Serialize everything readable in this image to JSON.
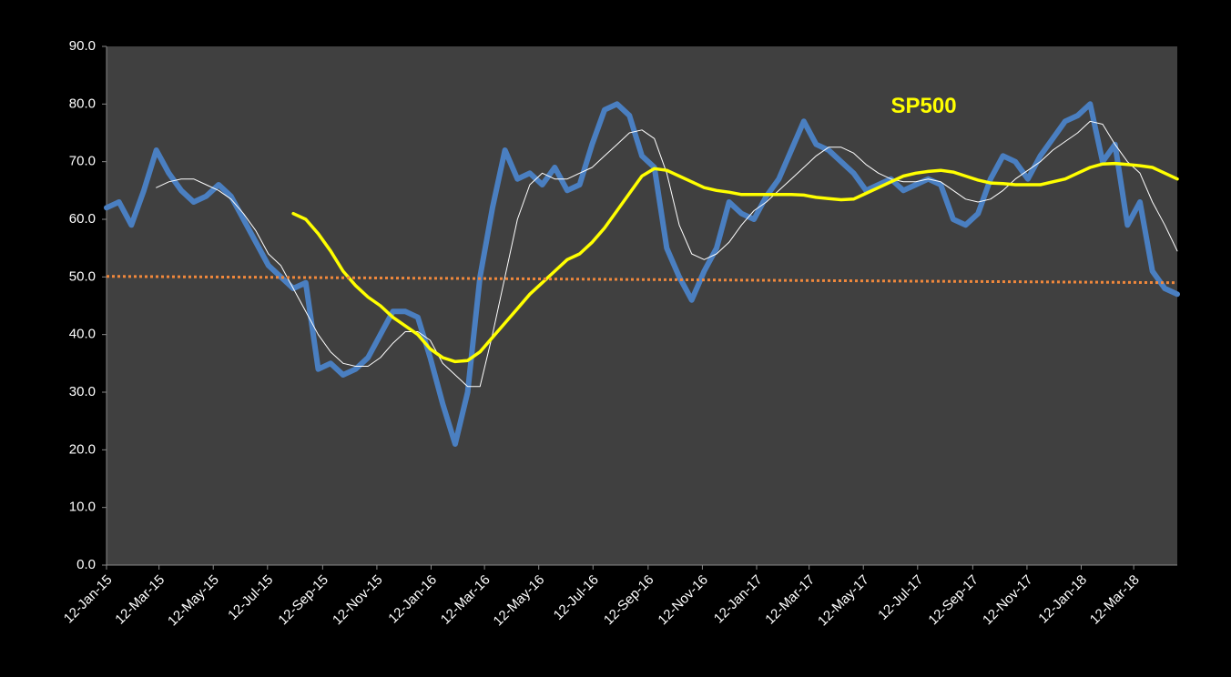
{
  "chart_data": {
    "type": "line",
    "annotations": [
      {
        "text": "SP500",
        "x": "2017-06-12",
        "y": 79.5,
        "color": "#ffff00"
      }
    ],
    "x": [
      "2015-01-12",
      "2015-01-26",
      "2015-02-09",
      "2015-02-23",
      "2015-03-09",
      "2015-03-23",
      "2015-04-06",
      "2015-04-20",
      "2015-05-04",
      "2015-05-18",
      "2015-06-01",
      "2015-06-15",
      "2015-06-29",
      "2015-07-13",
      "2015-07-27",
      "2015-08-10",
      "2015-08-24",
      "2015-09-07",
      "2015-09-21",
      "2015-10-05",
      "2015-10-19",
      "2015-11-02",
      "2015-11-16",
      "2015-11-30",
      "2015-12-14",
      "2015-12-28",
      "2016-01-11",
      "2016-01-25",
      "2016-02-08",
      "2016-02-22",
      "2016-03-07",
      "2016-03-21",
      "2016-04-04",
      "2016-04-18",
      "2016-05-02",
      "2016-05-16",
      "2016-05-30",
      "2016-06-13",
      "2016-06-27",
      "2016-07-11",
      "2016-07-25",
      "2016-08-08",
      "2016-08-22",
      "2016-09-05",
      "2016-09-19",
      "2016-10-03",
      "2016-10-17",
      "2016-10-31",
      "2016-11-14",
      "2016-11-28",
      "2016-12-12",
      "2016-12-26",
      "2017-01-09",
      "2017-01-23",
      "2017-02-06",
      "2017-02-20",
      "2017-03-06",
      "2017-03-20",
      "2017-04-03",
      "2017-04-17",
      "2017-05-01",
      "2017-05-15",
      "2017-05-29",
      "2017-06-12",
      "2017-06-26",
      "2017-07-10",
      "2017-07-24",
      "2017-08-07",
      "2017-08-21",
      "2017-09-04",
      "2017-09-18",
      "2017-10-02",
      "2017-10-16",
      "2017-10-30",
      "2017-11-13",
      "2017-11-27",
      "2017-12-11",
      "2017-12-25",
      "2018-01-08",
      "2018-01-22",
      "2018-02-05",
      "2018-02-19",
      "2018-03-05",
      "2018-03-19",
      "2018-04-02",
      "2018-04-16",
      "2018-04-30"
    ],
    "series": [
      {
        "color": "#4a7fc1",
        "width": 6,
        "values": [
          62,
          63,
          59,
          65,
          72,
          68,
          65,
          63,
          64,
          66,
          64,
          60,
          56,
          52,
          50,
          48,
          49,
          34,
          35,
          33,
          34,
          36,
          40,
          44,
          44,
          43,
          36,
          28,
          21,
          30,
          50,
          62,
          72,
          67,
          68,
          66,
          69,
          65,
          66,
          73,
          79,
          80,
          78,
          71,
          69,
          55,
          50,
          46,
          51,
          55,
          63,
          61,
          60,
          64,
          67,
          72,
          77,
          73,
          72,
          70,
          68,
          65,
          66,
          67,
          65,
          66,
          67,
          66,
          60,
          59,
          61,
          67,
          71,
          70,
          67,
          71,
          74,
          77,
          78,
          80,
          70,
          73,
          59,
          63,
          51,
          48,
          47
        ]
      },
      {
        "color": "#ffffff",
        "width": 1,
        "values": [
          null,
          null,
          null,
          null,
          65.5,
          66.5,
          67,
          67,
          66,
          65,
          63.5,
          61,
          58,
          54,
          52,
          48,
          44,
          40,
          37,
          35,
          34.5,
          34.5,
          36,
          38.5,
          40.5,
          40.5,
          39,
          35,
          33,
          31,
          31,
          40,
          50,
          60,
          66,
          68,
          67,
          67,
          68,
          69,
          71,
          73,
          75,
          75.5,
          74,
          68,
          59,
          54,
          53,
          54,
          56,
          59,
          61.5,
          63,
          65,
          67,
          69,
          71,
          72.5,
          72.5,
          71.5,
          69.5,
          68,
          67,
          66.5,
          66.5,
          67,
          66.5,
          65,
          63.5,
          63,
          63.5,
          65,
          67,
          68.5,
          70,
          72,
          73.5,
          75,
          77,
          76.5,
          73,
          70,
          68,
          63,
          59,
          54.5
        ]
      },
      {
        "color": "#ffff00",
        "width": 3.5,
        "values": [
          null,
          null,
          null,
          null,
          null,
          null,
          null,
          null,
          null,
          null,
          null,
          null,
          null,
          null,
          null,
          61,
          60,
          57.5,
          54.5,
          51,
          48.5,
          46.5,
          45,
          43,
          41.5,
          40,
          37.5,
          36,
          35.3,
          35.5,
          37,
          39.5,
          42,
          44.5,
          47,
          49,
          51,
          53,
          54,
          56,
          58.5,
          61.5,
          64.5,
          67.5,
          68.8,
          68.5,
          67.5,
          66.5,
          65.5,
          65,
          64.7,
          64.3,
          64.3,
          64.3,
          64.3,
          64.3,
          64.2,
          63.8,
          63.6,
          63.4,
          63.5,
          64.5,
          65.5,
          66.5,
          67.5,
          68,
          68.3,
          68.5,
          68.2,
          67.5,
          66.8,
          66.3,
          66.2,
          66,
          66,
          66,
          66.5,
          67,
          68,
          69,
          69.6,
          69.7,
          69.5,
          69.3,
          69,
          68,
          67
        ]
      },
      {
        "color": "#f0883c",
        "width": 3,
        "dotted": true,
        "x": [
          "2015-01-12",
          "2018-04-30"
        ],
        "values": [
          50.1,
          49
        ]
      }
    ],
    "xlim": [
      "2015-01-12",
      "2018-04-30"
    ],
    "xticks": [
      {
        "value": "2015-01-12",
        "label": "12-Jan-15"
      },
      {
        "value": "2015-03-12",
        "label": "12-Mar-15"
      },
      {
        "value": "2015-05-12",
        "label": "12-May-15"
      },
      {
        "value": "2015-07-12",
        "label": "12-Jul-15"
      },
      {
        "value": "2015-09-12",
        "label": "12-Sep-15"
      },
      {
        "value": "2015-11-12",
        "label": "12-Nov-15"
      },
      {
        "value": "2016-01-12",
        "label": "12-Jan-16"
      },
      {
        "value": "2016-03-12",
        "label": "12-Mar-16"
      },
      {
        "value": "2016-05-12",
        "label": "12-May-16"
      },
      {
        "value": "2016-07-12",
        "label": "12-Jul-16"
      },
      {
        "value": "2016-09-12",
        "label": "12-Sep-16"
      },
      {
        "value": "2016-11-12",
        "label": "12-Nov-16"
      },
      {
        "value": "2017-01-12",
        "label": "12-Jan-17"
      },
      {
        "value": "2017-03-12",
        "label": "12-Mar-17"
      },
      {
        "value": "2017-05-12",
        "label": "12-May-17"
      },
      {
        "value": "2017-07-12",
        "label": "12-Jul-17"
      },
      {
        "value": "2017-09-12",
        "label": "12-Sep-17"
      },
      {
        "value": "2017-11-12",
        "label": "12-Nov-17"
      },
      {
        "value": "2018-01-12",
        "label": "12-Jan-18"
      },
      {
        "value": "2018-03-12",
        "label": "12-Mar-18"
      }
    ],
    "ylim": [
      0,
      90
    ],
    "yticks": [
      {
        "value": 0,
        "label": "0.0"
      },
      {
        "value": 10,
        "label": "10.0"
      },
      {
        "value": 20,
        "label": "20.0"
      },
      {
        "value": 30,
        "label": "30.0"
      },
      {
        "value": 40,
        "label": "40.0"
      },
      {
        "value": 50,
        "label": "50.0"
      },
      {
        "value": 60,
        "label": "60.0"
      },
      {
        "value": 70,
        "label": "70.0"
      },
      {
        "value": 80,
        "label": "80.0"
      },
      {
        "value": 90,
        "label": "90.0"
      }
    ],
    "grid": false,
    "plot_color": "#404040",
    "background": "#000000"
  }
}
